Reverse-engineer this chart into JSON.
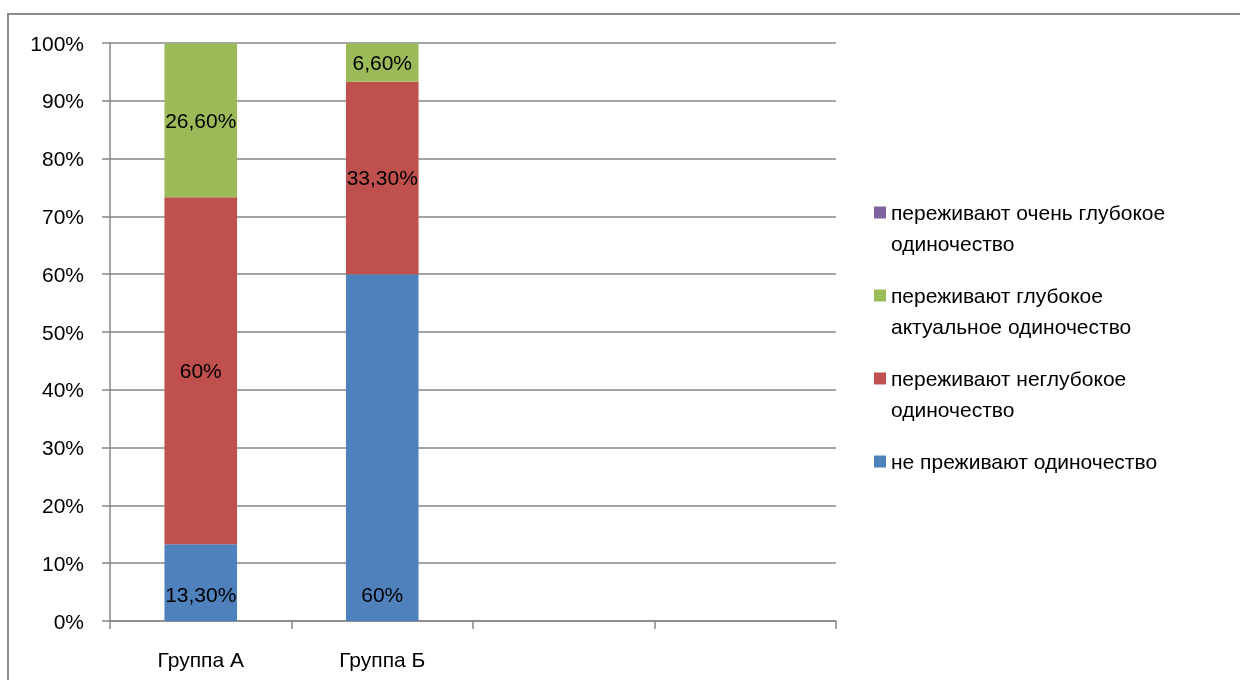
{
  "chart_data": {
    "type": "bar",
    "stacked": true,
    "categories": [
      "Группа А",
      "Группа Б",
      null,
      null
    ],
    "series": [
      {
        "name": "не преживают одиночество",
        "color": "#4f81bd",
        "values": [
          13.3,
          60,
          null,
          null
        ],
        "value_labels": [
          "13,30%",
          "60%",
          null,
          null
        ]
      },
      {
        "name": "переживают неглубокое одиночество",
        "color": "#c0504d",
        "values": [
          60,
          33.3,
          null,
          null
        ],
        "value_labels": [
          "60%",
          "33,30%",
          null,
          null
        ]
      },
      {
        "name": "переживают глубокое актуальное одиночество",
        "color": "#9bbb59",
        "values": [
          26.6,
          6.6,
          null,
          null
        ],
        "value_labels": [
          "26,60%",
          "6,60%",
          null,
          null
        ]
      },
      {
        "name": "переживают очень глубокое одиночество",
        "color": "#8064a2",
        "values": [
          null,
          null,
          null,
          null
        ]
      }
    ],
    "ylim": [
      0,
      100
    ],
    "yticks": [
      {
        "value": 0,
        "label": "0%"
      },
      {
        "value": 10,
        "label": "10%"
      },
      {
        "value": 20,
        "label": "20%"
      },
      {
        "value": 30,
        "label": "30%"
      },
      {
        "value": 40,
        "label": "40%"
      },
      {
        "value": 50,
        "label": "50%"
      },
      {
        "value": 60,
        "label": "60%"
      },
      {
        "value": 70,
        "label": "70%"
      },
      {
        "value": 80,
        "label": "80%"
      },
      {
        "value": 90,
        "label": "90%"
      },
      {
        "value": 100,
        "label": "100%"
      }
    ],
    "grid": "y",
    "legend": "right"
  }
}
